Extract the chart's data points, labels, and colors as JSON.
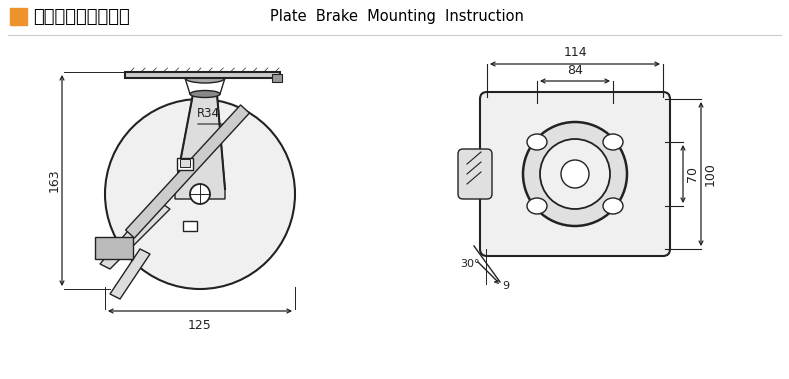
{
  "title_chinese": "平顶剎车安装尺寸图",
  "title_english": "Plate  Brake  Mounting  Instruction",
  "orange_color": "#F0922B",
  "line_color": "#222222",
  "bg_color": "#ffffff",
  "dim_114": "114",
  "dim_84": "84",
  "dim_70": "70",
  "dim_100": "100",
  "dim_125": "125",
  "dim_163": "163",
  "dim_34": "34",
  "dim_30": "30°",
  "dim_9": "9"
}
